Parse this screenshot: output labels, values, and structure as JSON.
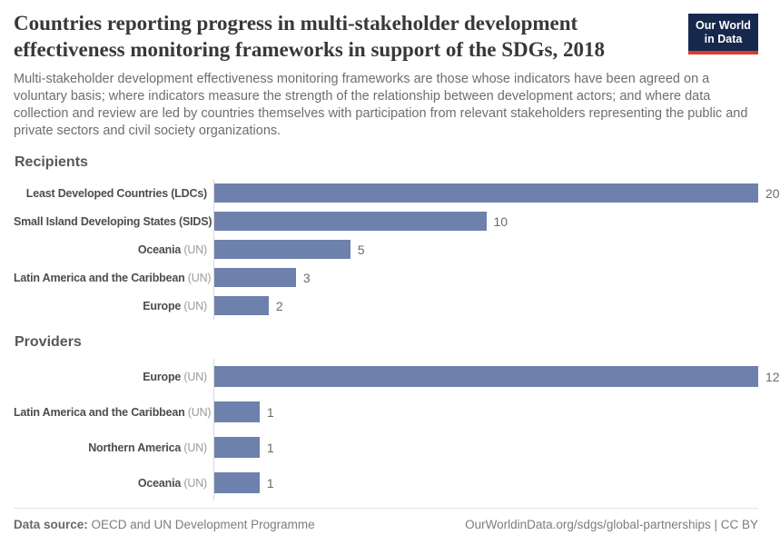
{
  "header": {
    "title": "Countries reporting progress in multi-stakeholder development effectiveness monitoring frameworks in support of the SDGs, 2018",
    "subtitle": "Multi-stakeholder development effectiveness monitoring frameworks are those whose indicators have been agreed on a voluntary basis; where indicators measure the strength of the relationship between development actors; and where data collection and review are led by countries themselves with participation from relevant stakeholders representing the public and private sectors and civil society organizations.",
    "logo": {
      "line1": "Our World",
      "line2": "in Data",
      "bg_color": "#16294d",
      "accent_color": "#dc3a2f"
    }
  },
  "chart_data": {
    "type": "bar",
    "orientation": "horizontal",
    "bar_color": "#6d81ac",
    "grid": false,
    "legend": false,
    "sections": [
      {
        "title": "Recipients",
        "max": 20,
        "rows": [
          {
            "name": "Least Developed Countries (LDCs)",
            "suffix": "",
            "value": 20
          },
          {
            "name": "Small Island Developing States (SIDS)",
            "suffix": "",
            "value": 10
          },
          {
            "name": "Oceania",
            "suffix": " (UN)",
            "value": 5
          },
          {
            "name": "Latin America and the Caribbean",
            "suffix": " (UN)",
            "value": 3
          },
          {
            "name": "Europe",
            "suffix": " (UN)",
            "value": 2
          }
        ]
      },
      {
        "title": "Providers",
        "max": 12,
        "rows": [
          {
            "name": "Europe",
            "suffix": " (UN)",
            "value": 12
          },
          {
            "name": "Latin America and the Caribbean",
            "suffix": " (UN)",
            "value": 1
          },
          {
            "name": "Northern America",
            "suffix": " (UN)",
            "value": 1
          },
          {
            "name": "Oceania",
            "suffix": " (UN)",
            "value": 1
          }
        ]
      }
    ]
  },
  "footer": {
    "source_label": "Data source:",
    "source_text": " OECD and UN Development Programme",
    "link_text": "OurWorldinData.org/sdgs/global-partnerships | CC BY"
  }
}
